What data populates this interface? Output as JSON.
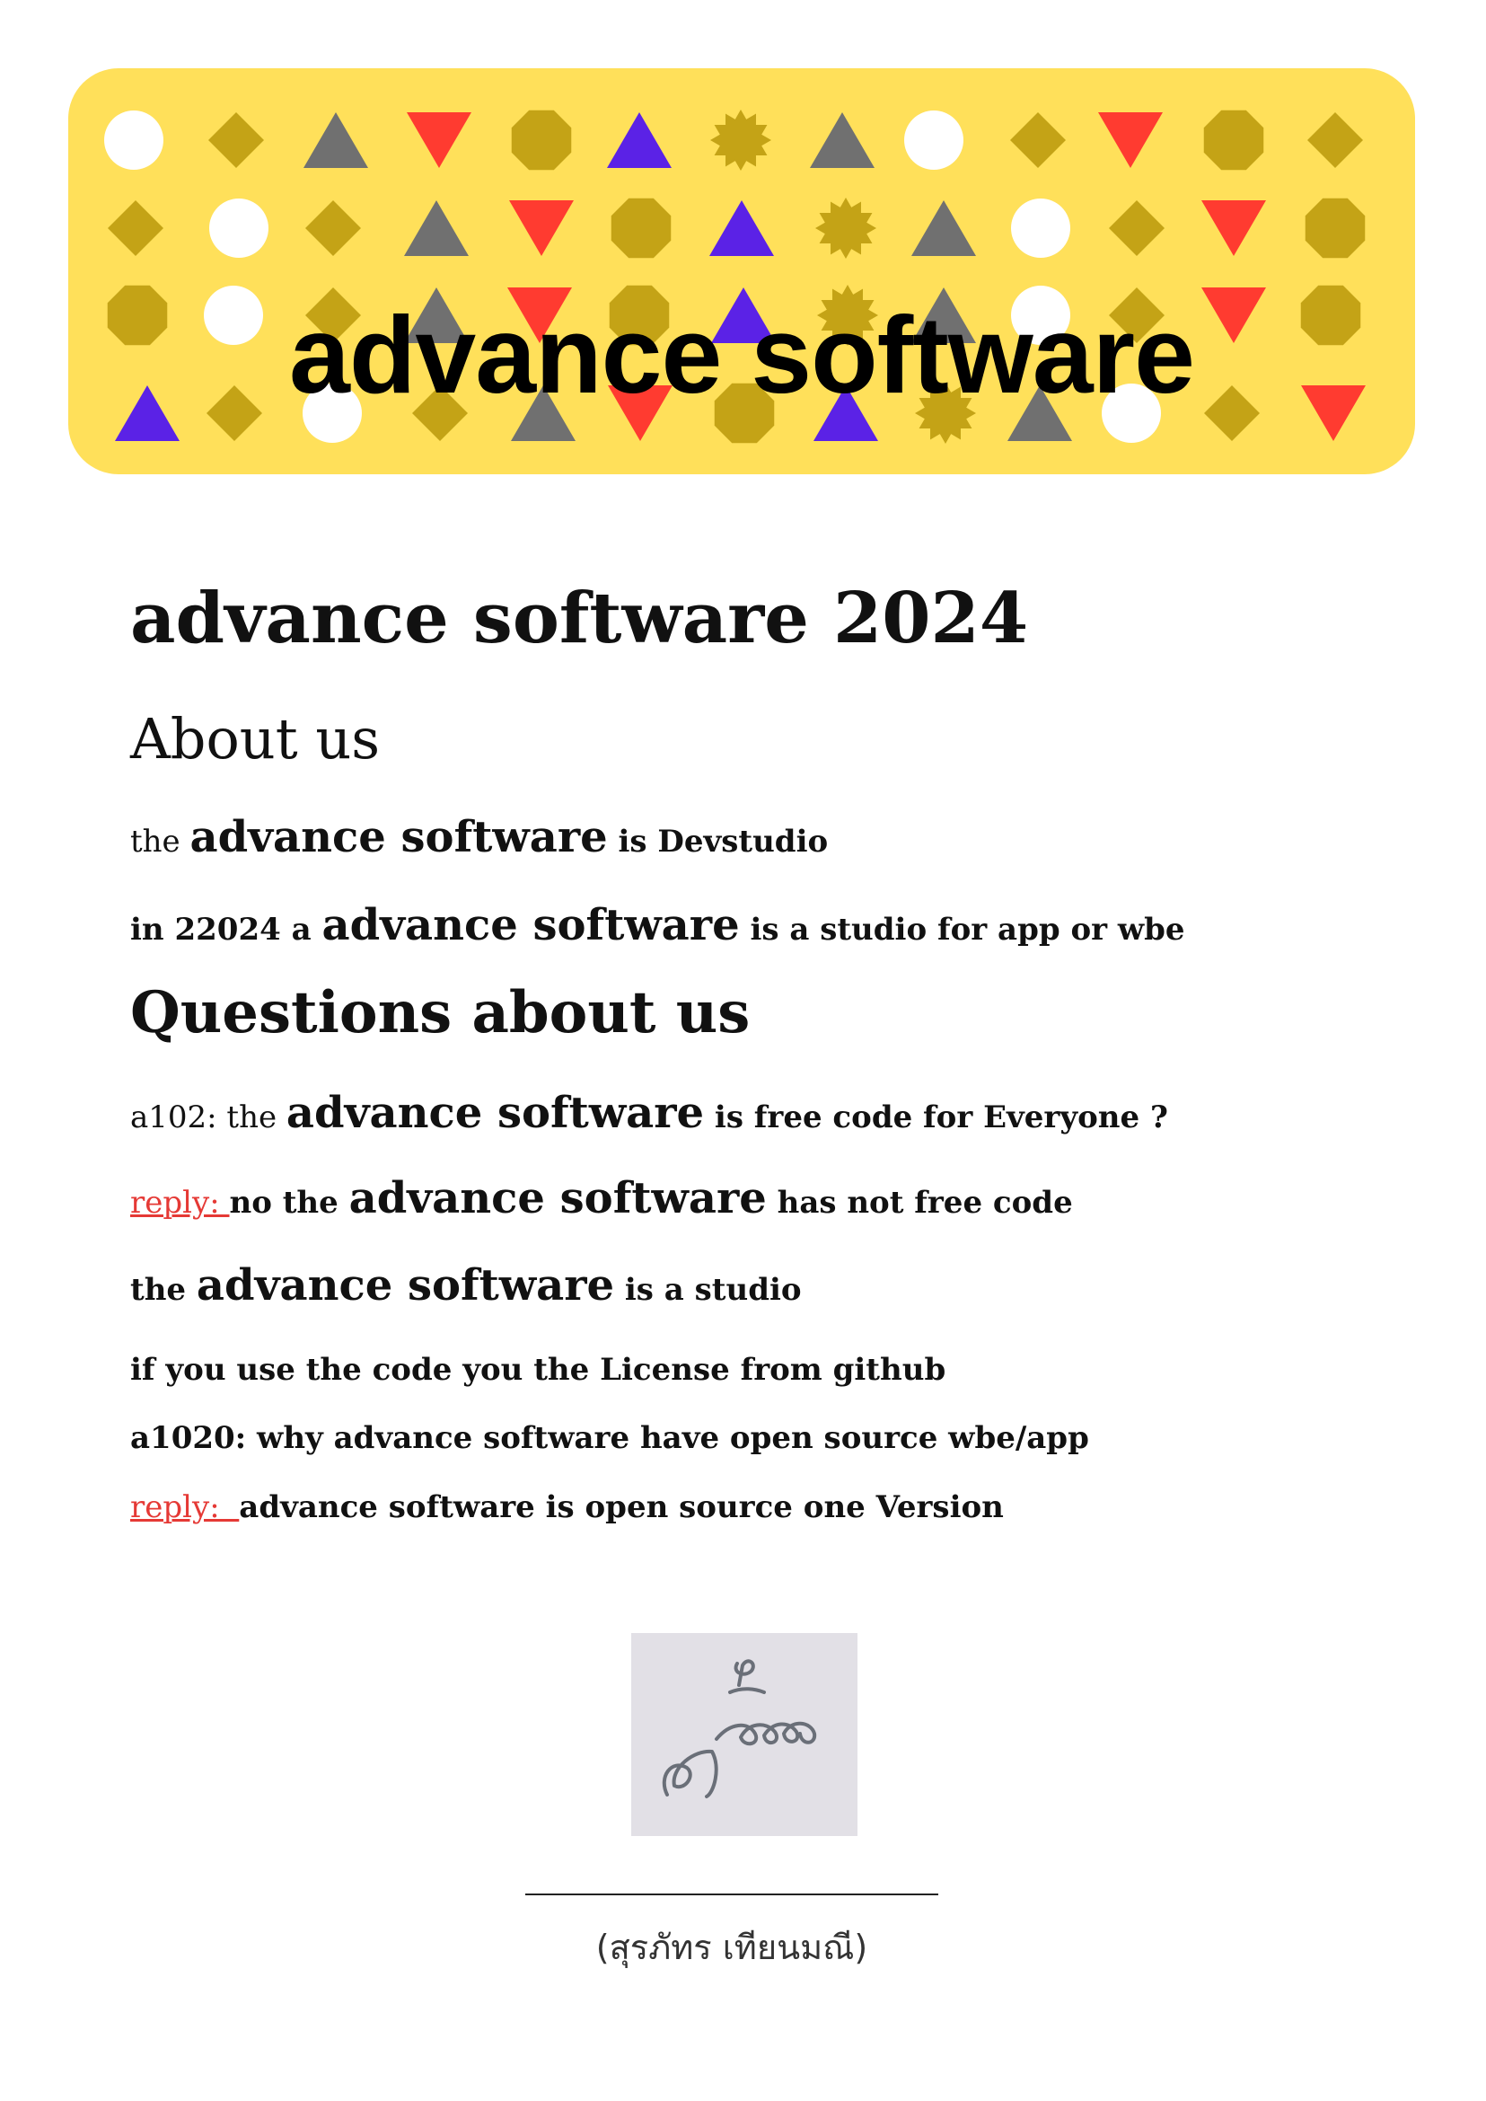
{
  "banner": {
    "title": "advance software",
    "background_color": "#FFE05A",
    "shape_colors": {
      "circle": "#FFFFFF",
      "diamond": "#C4A316",
      "octagon": "#C4A316",
      "star": "#C4A316",
      "triangle_up_gray": "#707070",
      "triangle_up_purple": "#5B22E6",
      "triangle_down": "#FF3B30"
    }
  },
  "heading": "advance software 2024",
  "about": {
    "title": "About us",
    "line1": {
      "pre": "the ",
      "brand": "advance software",
      "post": " is Devstudio"
    },
    "line2": {
      "pre": "in 22024 a ",
      "brand": "advance software",
      "post": " is a studio for app or wbe"
    }
  },
  "questions": {
    "title": "Questions about us",
    "q1": {
      "pre": "a102: the ",
      "brand": "advance software",
      "post": " is free code for Everyone ?"
    },
    "r1": {
      "reply": "reply: ",
      "pre": "no the ",
      "brand": "advance software",
      "post": " has not free code"
    },
    "r1b": {
      "pre": "the ",
      "brand": "advance software",
      "post": " is a studio"
    },
    "r1c": "if you use the code you the License from github",
    "q2": "a1020: why advance software have open source wbe/app",
    "r2": {
      "reply": "reply:  ",
      "text": "advance software is open source one Version"
    }
  },
  "signature": {
    "name": "(สุรภัทร เทียนมณี)",
    "box_color": "#E2E0E6",
    "ink_color": "#6A6F78"
  }
}
